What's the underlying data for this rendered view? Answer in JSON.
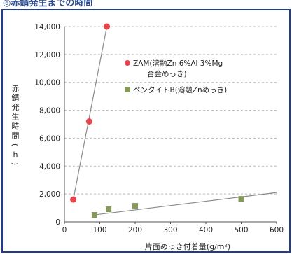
{
  "chart_data": {
    "type": "scatter",
    "title": "◎赤錆発生までの時間",
    "ylabel": "赤錆発生時間(h)",
    "xlabel": "片面めっき付着量(g/m²)",
    "xlim": [
      0,
      600
    ],
    "ylim": [
      0,
      14000
    ],
    "x_ticks": [
      0,
      100,
      200,
      300,
      400,
      500,
      600
    ],
    "y_ticks": [
      0,
      2000,
      4000,
      6000,
      8000,
      10000,
      12000,
      14000
    ],
    "x_tick_labels": [
      "0",
      "100",
      "200",
      "300",
      "400",
      "500",
      "600"
    ],
    "y_tick_labels": [
      "0",
      "2,000",
      "4,000",
      "6,000",
      "8,000",
      "10,000",
      "12,000",
      "14,000"
    ],
    "grid": "horizontal-dashed",
    "legend_position": "right",
    "series": [
      {
        "name": "ZAM(溶融Zn 6%Al 3%Mg 合金めっき)",
        "name_lines": [
          "ZAM(溶融Zn 6%Al 3%Mg",
          "合金めっき)"
        ],
        "marker": "circle",
        "color": "#e8454e",
        "points": [
          [
            25,
            1600
          ],
          [
            70,
            7200
          ],
          [
            120,
            14000
          ]
        ],
        "trend": [
          [
            25,
            1600
          ],
          [
            120,
            14000
          ]
        ]
      },
      {
        "name": "ベンタイトB(溶融Znめっき)",
        "name_lines": [
          "ベンタイトB(溶融Znめっき)"
        ],
        "marker": "square",
        "color": "#86995a",
        "points": [
          [
            85,
            500
          ],
          [
            125,
            900
          ],
          [
            200,
            1150
          ],
          [
            500,
            1650
          ]
        ],
        "trend": [
          [
            85,
            500
          ],
          [
            600,
            2100
          ]
        ]
      }
    ]
  }
}
